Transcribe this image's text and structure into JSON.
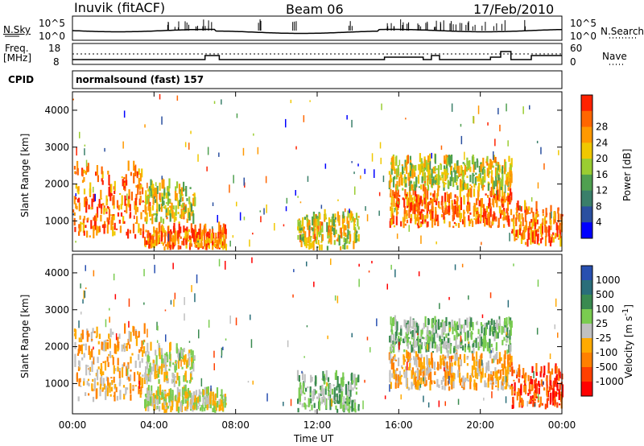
{
  "header": {
    "station": "Inuvik (fitACF)",
    "beam": "Beam 06",
    "date": "17/Feb/2010"
  },
  "scan_panel": {
    "left_label": "N.Sky",
    "left_ticks": [
      "10^5",
      "10^0"
    ],
    "right_label": "N.Search",
    "right_ticks": [
      "10^5",
      "10^0"
    ]
  },
  "freq_panel": {
    "left_label_top": "Freq.",
    "left_label_bottom": "[MHz]",
    "left_ticks": [
      "18",
      "8"
    ],
    "right_label": "Nave",
    "right_ticks": [
      "60",
      "0"
    ]
  },
  "cpid": {
    "label": "CPID",
    "program": "normalsound (fast) 157"
  },
  "colors": {
    "power": [
      "#0000ff",
      "#2a4fa0",
      "#3a7f6a",
      "#4fa050",
      "#9acd32",
      "#f0c800",
      "#ff9900",
      "#ff6600",
      "#ff2200"
    ],
    "velocity": [
      "#2850b0",
      "#2a6e7a",
      "#3a8a50",
      "#7acc50",
      "#c0c0c0",
      "#ffaa00",
      "#ff8000",
      "#ff4000",
      "#ff0000"
    ]
  },
  "chart_data": [
    {
      "type": "heatmap",
      "title": "",
      "ylabel": "Slant Range [km]",
      "xlabel": "",
      "x_ticks": [
        "00:00",
        "04:00",
        "08:00",
        "12:00",
        "16:00",
        "20:00",
        "00:00"
      ],
      "y_ticks": [
        "1000",
        "2000",
        "3000",
        "4000"
      ],
      "ylim": [
        180,
        4500
      ],
      "colorbar": {
        "label": "Power [dB]",
        "ticks": [
          "4",
          "8",
          "12",
          "16",
          "20",
          "24",
          "28"
        ]
      },
      "echo_regions": [
        {
          "t_start": 0.0,
          "t_end": 3.5,
          "r_min": 500,
          "r_max": 2400,
          "level": "high"
        },
        {
          "t_start": 3.5,
          "t_end": 6.0,
          "r_min": 900,
          "r_max": 1900,
          "level": "mid"
        },
        {
          "t_start": 3.5,
          "t_end": 7.5,
          "r_min": 200,
          "r_max": 700,
          "level": "high"
        },
        {
          "t_start": 11.0,
          "t_end": 14.0,
          "r_min": 200,
          "r_max": 1100,
          "level": "mid"
        },
        {
          "t_start": 15.5,
          "t_end": 21.5,
          "r_min": 800,
          "r_max": 1700,
          "level": "high"
        },
        {
          "t_start": 15.5,
          "t_end": 21.5,
          "r_min": 1800,
          "r_max": 2600,
          "level": "mid"
        },
        {
          "t_start": 21.5,
          "t_end": 24.0,
          "r_min": 300,
          "r_max": 1300,
          "level": "high"
        }
      ]
    },
    {
      "type": "heatmap",
      "title": "",
      "ylabel": "Slant Range [km]",
      "xlabel": "Time UT",
      "x_ticks": [
        "00:00",
        "04:00",
        "08:00",
        "12:00",
        "16:00",
        "20:00",
        "00:00"
      ],
      "y_ticks": [
        "1000",
        "2000",
        "3000",
        "4000"
      ],
      "ylim": [
        180,
        4500
      ],
      "colorbar": {
        "label": "Velocity [m s^-1]",
        "ticks": [
          "1000",
          "500",
          "100",
          "25",
          "-25",
          "-100",
          "-500",
          "-1000"
        ]
      },
      "echo_regions": [
        {
          "t_start": 0.0,
          "t_end": 3.5,
          "r_min": 500,
          "r_max": 2400,
          "level": "-100"
        },
        {
          "t_start": 3.5,
          "t_end": 6.0,
          "r_min": 900,
          "r_max": 1900,
          "level": "25"
        },
        {
          "t_start": 3.5,
          "t_end": 7.5,
          "r_min": 200,
          "r_max": 700,
          "level": "-25"
        },
        {
          "t_start": 11.0,
          "t_end": 14.0,
          "r_min": 200,
          "r_max": 1100,
          "level": "100"
        },
        {
          "t_start": 15.5,
          "t_end": 21.5,
          "r_min": 800,
          "r_max": 1700,
          "level": "-100"
        },
        {
          "t_start": 15.5,
          "t_end": 21.5,
          "r_min": 1800,
          "r_max": 2600,
          "level": "100"
        },
        {
          "t_start": 21.5,
          "t_end": 24.0,
          "r_min": 300,
          "r_max": 1300,
          "level": "-500"
        }
      ]
    }
  ]
}
